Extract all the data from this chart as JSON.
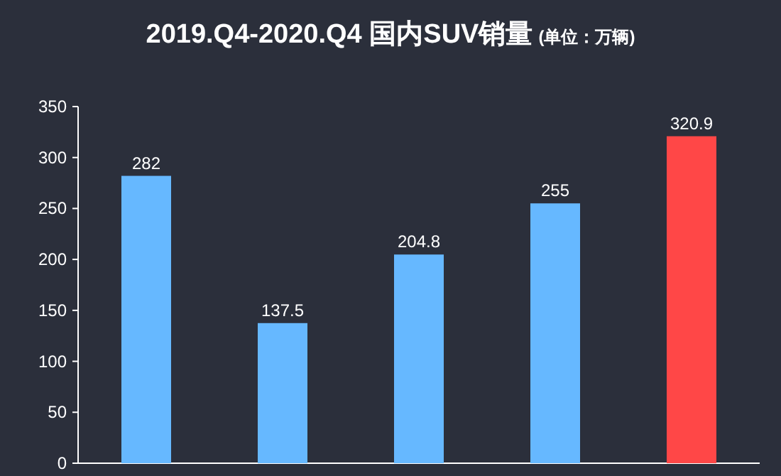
{
  "chart_data": {
    "type": "bar",
    "title": "2019.Q4-2020.Q4 国内SUV销量",
    "subtitle": "(单位：万辆)",
    "categories": [
      null,
      null,
      null,
      null,
      null
    ],
    "values": [
      282,
      137.5,
      204.8,
      255,
      320.9
    ],
    "colors": [
      "#66b8ff",
      "#66b8ff",
      "#66b8ff",
      "#66b8ff",
      "#ff4747"
    ],
    "ylim": [
      0,
      350
    ],
    "yticks": [
      0,
      50,
      100,
      150,
      200,
      250,
      300,
      350
    ],
    "data_labels": true
  }
}
